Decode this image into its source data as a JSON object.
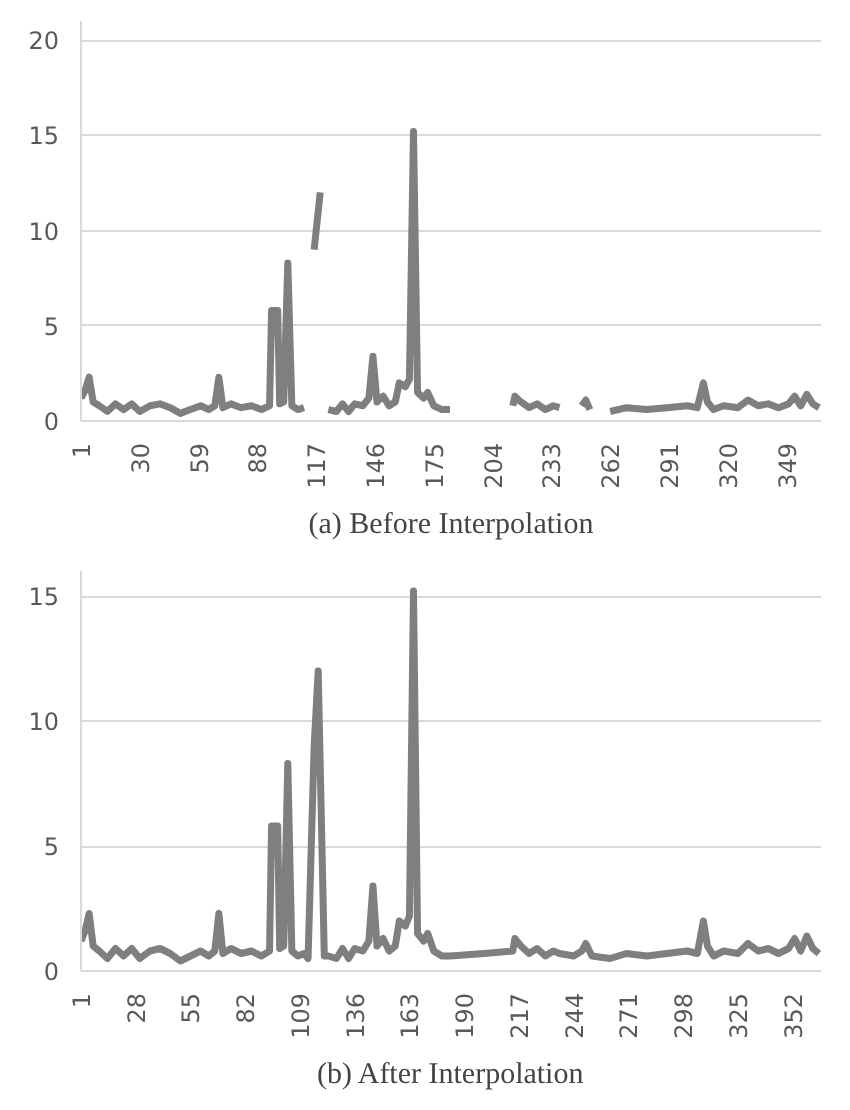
{
  "chart_data": [
    {
      "type": "line",
      "title": "(a) Before Interpolation",
      "xlim": [
        1,
        366
      ],
      "xticks": [
        1,
        30,
        59,
        88,
        117,
        146,
        175,
        204,
        233,
        262,
        291,
        320,
        349
      ],
      "ylim": [
        0,
        21
      ],
      "yticks": [
        0,
        5,
        10,
        15,
        20
      ],
      "grid": "y",
      "series": [
        {
          "color": "#7f7f7f",
          "x": [
            1,
            3,
            5,
            7,
            10,
            14,
            18,
            22,
            26,
            30,
            35,
            40,
            45,
            50,
            55,
            60,
            64,
            67,
            69,
            71,
            75,
            80,
            85,
            90,
            94,
            95,
            98,
            99,
            101,
            103,
            105,
            108,
            111,
            112,
            116,
            119,
            120,
            123,
            127,
            130,
            133,
            136,
            140,
            143,
            145,
            147,
            150,
            153,
            156,
            158,
            161,
            163,
            165,
            167,
            170,
            172,
            175,
            179,
            183,
            184,
            214,
            215,
            218,
            222,
            226,
            230,
            234,
            237,
            238,
            248,
            250,
            252,
            253,
            262,
            270,
            280,
            290,
            300,
            305,
            308,
            310,
            313,
            318,
            325,
            330,
            335,
            340,
            345,
            350,
            353,
            356,
            359,
            362,
            365
          ],
          "values": [
            1.2,
            1.6,
            2.3,
            1.0,
            0.8,
            0.5,
            0.9,
            0.6,
            0.9,
            0.5,
            0.8,
            0.9,
            0.7,
            0.4,
            0.6,
            0.8,
            0.6,
            0.8,
            2.3,
            0.7,
            0.9,
            0.7,
            0.8,
            0.6,
            0.8,
            5.8,
            5.8,
            0.9,
            1.0,
            8.3,
            0.8,
            0.6,
            0.7,
            null,
            9.0,
            12.0,
            null,
            0.6,
            0.5,
            0.9,
            0.5,
            0.9,
            0.8,
            1.2,
            3.4,
            1.0,
            1.3,
            0.8,
            1.0,
            2.0,
            1.8,
            2.2,
            15.2,
            1.5,
            1.2,
            1.5,
            0.8,
            0.6,
            0.6,
            null,
            0.8,
            1.3,
            1.0,
            0.7,
            0.9,
            0.6,
            0.8,
            0.7,
            null,
            0.8,
            1.1,
            0.6,
            null,
            0.5,
            0.7,
            0.6,
            0.7,
            0.8,
            0.7,
            2.0,
            1.0,
            0.6,
            0.8,
            0.7,
            1.1,
            0.8,
            0.9,
            0.7,
            0.9,
            1.3,
            0.8,
            1.4,
            0.9,
            0.7
          ]
        }
      ]
    },
    {
      "type": "line",
      "title": "(b) After Interpolation",
      "xlim": [
        1,
        366
      ],
      "xticks": [
        1,
        28,
        55,
        82,
        109,
        136,
        163,
        190,
        217,
        244,
        271,
        298,
        325,
        352
      ],
      "ylim": [
        0,
        16
      ],
      "yticks": [
        0,
        5,
        10,
        15
      ],
      "grid": "y",
      "series": [
        {
          "color": "#7f7f7f",
          "x": [
            1,
            3,
            5,
            7,
            10,
            14,
            18,
            22,
            26,
            30,
            35,
            40,
            45,
            50,
            55,
            60,
            64,
            67,
            69,
            71,
            75,
            80,
            85,
            90,
            94,
            95,
            98,
            99,
            101,
            103,
            105,
            108,
            111,
            113,
            116,
            118,
            121,
            123,
            127,
            130,
            133,
            136,
            140,
            143,
            145,
            147,
            150,
            153,
            156,
            158,
            161,
            163,
            165,
            167,
            170,
            172,
            175,
            179,
            183,
            200,
            214,
            215,
            218,
            222,
            226,
            230,
            234,
            237,
            244,
            248,
            250,
            253,
            262,
            270,
            280,
            290,
            300,
            305,
            308,
            310,
            313,
            318,
            325,
            330,
            335,
            340,
            345,
            350,
            353,
            356,
            359,
            362,
            365
          ],
          "values": [
            1.2,
            1.6,
            2.3,
            1.0,
            0.8,
            0.5,
            0.9,
            0.6,
            0.9,
            0.5,
            0.8,
            0.9,
            0.7,
            0.4,
            0.6,
            0.8,
            0.6,
            0.8,
            2.3,
            0.7,
            0.9,
            0.7,
            0.8,
            0.6,
            0.8,
            5.8,
            5.8,
            0.9,
            1.0,
            8.3,
            0.8,
            0.6,
            0.7,
            0.5,
            9.0,
            12.0,
            0.6,
            0.6,
            0.5,
            0.9,
            0.5,
            0.9,
            0.8,
            1.2,
            3.4,
            1.0,
            1.3,
            0.8,
            1.0,
            2.0,
            1.8,
            2.2,
            15.2,
            1.5,
            1.2,
            1.5,
            0.8,
            0.6,
            0.6,
            0.7,
            0.8,
            1.3,
            1.0,
            0.7,
            0.9,
            0.6,
            0.8,
            0.7,
            0.6,
            0.8,
            1.1,
            0.6,
            0.5,
            0.7,
            0.6,
            0.7,
            0.8,
            0.7,
            2.0,
            1.0,
            0.6,
            0.8,
            0.7,
            1.1,
            0.8,
            0.9,
            0.7,
            0.9,
            1.3,
            0.8,
            1.4,
            0.9,
            0.7
          ]
        }
      ]
    }
  ]
}
